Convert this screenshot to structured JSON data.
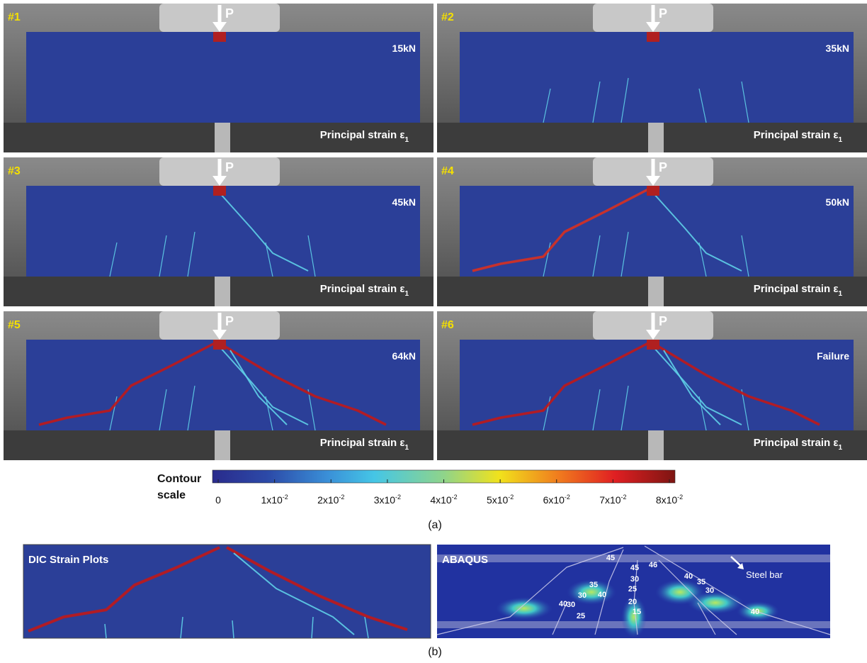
{
  "panels": [
    {
      "id": "#1",
      "load_symbol": "P",
      "load": "15kN",
      "label": "Principal strain ε",
      "label_sub": "1"
    },
    {
      "id": "#2",
      "load_symbol": "P",
      "load": "35kN",
      "label": "Principal strain ε",
      "label_sub": "1"
    },
    {
      "id": "#3",
      "load_symbol": "P",
      "load": "45kN",
      "label": "Principal strain ε",
      "label_sub": "1"
    },
    {
      "id": "#4",
      "load_symbol": "P",
      "load": "50kN",
      "label": "Principal strain ε",
      "label_sub": "1"
    },
    {
      "id": "#5",
      "load_symbol": "P",
      "load": "64kN",
      "label": "Principal strain ε",
      "label_sub": "1"
    },
    {
      "id": "#6",
      "load_symbol": "P",
      "load": "Failure",
      "label": "Principal strain ε",
      "label_sub": "1"
    }
  ],
  "colorbar": {
    "title_line1": "Contour",
    "title_line2": "scale",
    "lim": [
      0,
      0.08
    ],
    "ticks": [
      {
        "value": 0,
        "label": "0"
      },
      {
        "value": 0.01,
        "base": "1x10",
        "exp": "-2"
      },
      {
        "value": 0.02,
        "base": "2x10",
        "exp": "-2"
      },
      {
        "value": 0.03,
        "base": "3x10",
        "exp": "-2"
      },
      {
        "value": 0.04,
        "base": "4x10",
        "exp": "-2"
      },
      {
        "value": 0.05,
        "base": "5x10",
        "exp": "-2"
      },
      {
        "value": 0.06,
        "base": "6x10",
        "exp": "-2"
      },
      {
        "value": 0.07,
        "base": "7x10",
        "exp": "-2"
      },
      {
        "value": 0.08,
        "base": "8x10",
        "exp": "-2"
      }
    ]
  },
  "caption_a": "(a)",
  "dic": {
    "title": "DIC Strain Plots"
  },
  "abaqus": {
    "title": "ABAQUS",
    "steel_label": "Steel bar",
    "contours": [
      "45",
      "45",
      "46",
      "40",
      "40",
      "35",
      "30",
      "30",
      "25",
      "30",
      "25",
      "20",
      "15",
      "40",
      "35",
      "30",
      "40"
    ]
  },
  "caption_b": "(b)"
}
